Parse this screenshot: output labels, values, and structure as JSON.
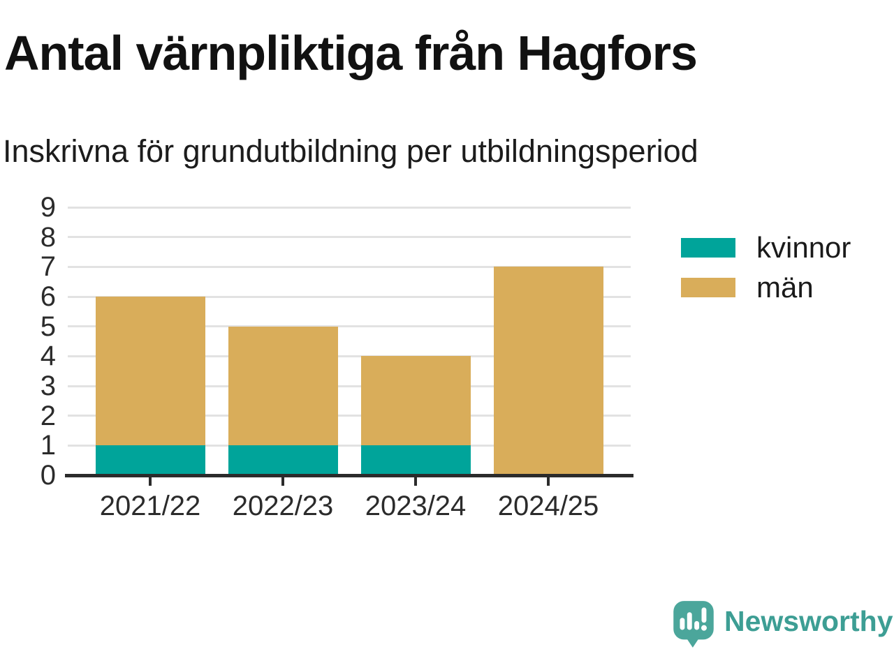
{
  "title": "Antal värnpliktiga från Hagfors",
  "subtitle": "Inskrivna för grundutbildning per utbildningsperiod",
  "chart_data": {
    "type": "bar",
    "stacked": true,
    "categories": [
      "2021/22",
      "2022/23",
      "2023/24",
      "2024/25"
    ],
    "series": [
      {
        "name": "kvinnor",
        "color": "#00a49a",
        "values": [
          1,
          1,
          1,
          0
        ]
      },
      {
        "name": "män",
        "color": "#d9ad5a",
        "values": [
          5,
          4,
          3,
          7
        ]
      }
    ],
    "totals": [
      6,
      5,
      4,
      7
    ],
    "ylim": [
      0,
      9
    ],
    "yticks": [
      0,
      1,
      2,
      3,
      4,
      5,
      6,
      7,
      8,
      9
    ],
    "grid": true,
    "legend_position": "right"
  },
  "legend": {
    "items": [
      {
        "label": "kvinnor",
        "color": "#00a49a"
      },
      {
        "label": "män",
        "color": "#d9ad5a"
      }
    ]
  },
  "colors": {
    "axis": "#2b2b2b",
    "grid": "#e2e2e2",
    "title_text": "#111111",
    "tick_text": "#2b2b2b",
    "logo_teal": "#4ba69b",
    "logo_text_teal": "#3d9e94"
  },
  "branding": {
    "logo_text": "Newsworthy",
    "icon": "newsworthy-logo-icon"
  }
}
